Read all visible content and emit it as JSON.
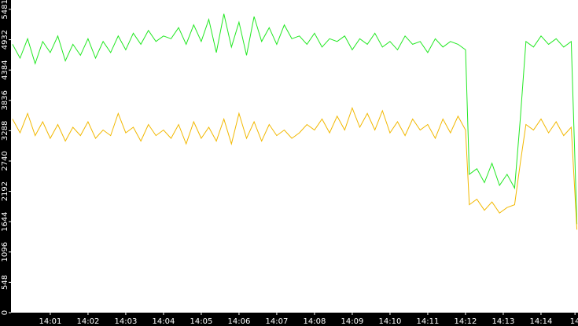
{
  "chart_data": {
    "type": "line",
    "x": [
      0,
      0.2,
      0.4,
      0.6,
      0.8,
      1.0,
      1.2,
      1.4,
      1.6,
      1.8,
      2.0,
      2.2,
      2.4,
      2.6,
      2.8,
      3.0,
      3.2,
      3.4,
      3.6,
      3.8,
      4.0,
      4.2,
      4.4,
      4.6,
      4.8,
      5.0,
      5.2,
      5.4,
      5.6,
      5.8,
      6.0,
      6.2,
      6.4,
      6.6,
      6.8,
      7.0,
      7.2,
      7.4,
      7.6,
      7.8,
      8.0,
      8.2,
      8.4,
      8.6,
      8.8,
      9.0,
      9.2,
      9.4,
      9.6,
      9.8,
      10.0,
      10.2,
      10.4,
      10.6,
      10.8,
      11.0,
      11.2,
      11.4,
      11.6,
      11.8,
      12.0,
      12.1,
      12.3,
      12.5,
      12.7,
      12.9,
      13.1,
      13.3,
      13.45,
      13.6,
      13.8,
      14.0,
      14.2,
      14.4,
      14.6,
      14.8,
      14.95
    ],
    "series": [
      {
        "color": "#22e822",
        "values": [
          4850,
          4600,
          4950,
          4500,
          4900,
          4700,
          5000,
          4550,
          4850,
          4650,
          4950,
          4600,
          4900,
          4700,
          5000,
          4750,
          5050,
          4850,
          5100,
          4900,
          5000,
          4950,
          5150,
          4850,
          5200,
          4900,
          5300,
          4700,
          5400,
          4800,
          5250,
          4650,
          5350,
          4900,
          5150,
          4850,
          5200,
          4950,
          5000,
          4850,
          5050,
          4800,
          4950,
          4900,
          5000,
          4750,
          4950,
          4850,
          5050,
          4800,
          4900,
          4750,
          5000,
          4850,
          4900,
          4700,
          4950,
          4800,
          4900,
          4850,
          4750,
          2500,
          2600,
          2350,
          2700,
          2300,
          2500,
          2250,
          3500,
          4900,
          4800,
          5000,
          4850,
          4950,
          4800,
          4900,
          1600
        ]
      },
      {
        "color": "#f2b800",
        "values": [
          3500,
          3250,
          3600,
          3200,
          3450,
          3150,
          3400,
          3100,
          3350,
          3200,
          3450,
          3150,
          3300,
          3200,
          3600,
          3250,
          3350,
          3100,
          3400,
          3200,
          3300,
          3150,
          3400,
          3050,
          3450,
          3150,
          3350,
          3100,
          3500,
          3050,
          3600,
          3150,
          3450,
          3100,
          3400,
          3200,
          3300,
          3150,
          3250,
          3400,
          3300,
          3500,
          3250,
          3550,
          3300,
          3700,
          3350,
          3600,
          3300,
          3650,
          3250,
          3450,
          3200,
          3500,
          3300,
          3400,
          3150,
          3500,
          3250,
          3550,
          3300,
          1950,
          2050,
          1850,
          2000,
          1800,
          1900,
          1950,
          2700,
          3400,
          3300,
          3500,
          3250,
          3450,
          3200,
          3350,
          1500
        ]
      }
    ],
    "xlim": [
      -0.04,
      14.98
    ],
    "xticks": [
      {
        "value": 1,
        "label": "14:01"
      },
      {
        "value": 2,
        "label": "14:02"
      },
      {
        "value": 3,
        "label": "14:03"
      },
      {
        "value": 4,
        "label": "14:04"
      },
      {
        "value": 5,
        "label": "14:05"
      },
      {
        "value": 6,
        "label": "14:06"
      },
      {
        "value": 7,
        "label": "14:07"
      },
      {
        "value": 8,
        "label": "14:08"
      },
      {
        "value": 9,
        "label": "14:09"
      },
      {
        "value": 10,
        "label": "14:10"
      },
      {
        "value": 11,
        "label": "14:11"
      },
      {
        "value": 12,
        "label": "14:12"
      },
      {
        "value": 13,
        "label": "14:13"
      },
      {
        "value": 14,
        "label": "14:14"
      },
      {
        "value": 14.9,
        "label": "14"
      }
    ],
    "ylim": [
      0,
      5650
    ],
    "yticks": [
      0,
      548,
      1096,
      1644,
      2192,
      2740,
      3288,
      3836,
      4384,
      4932,
      5481
    ]
  }
}
